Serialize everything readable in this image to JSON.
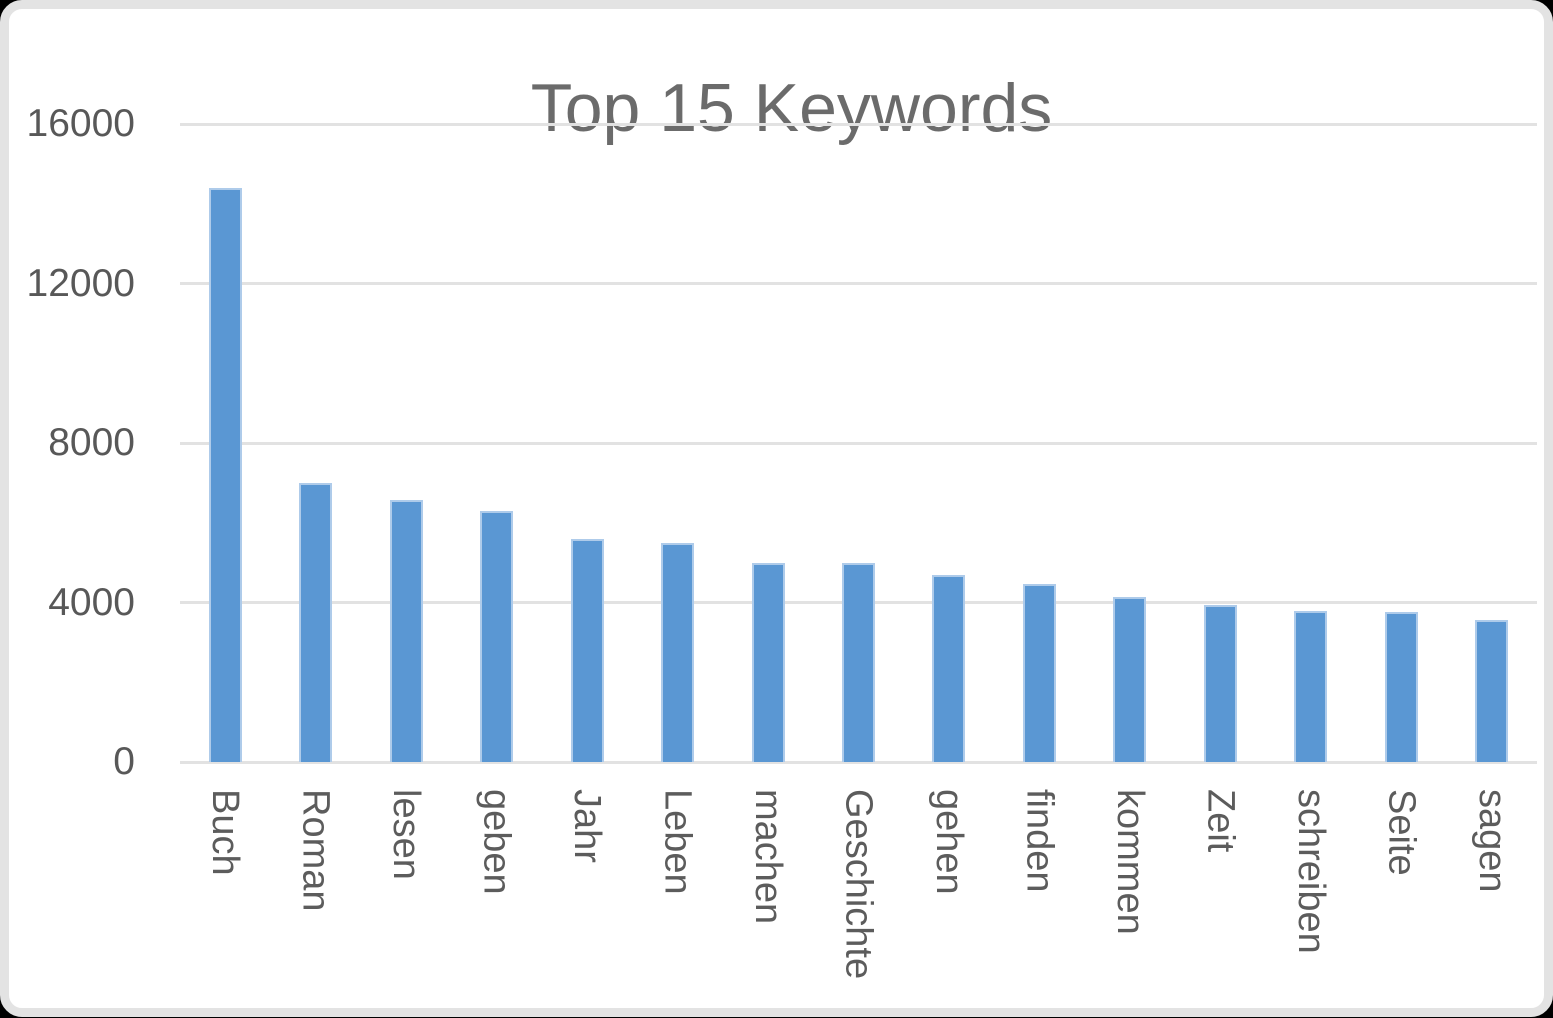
{
  "chart_data": {
    "type": "bar",
    "title": "Top 15 Keywords",
    "categories": [
      "Buch",
      "Roman",
      "lesen",
      "geben",
      "Jahr",
      "Leben",
      "machen",
      "Geschichte",
      "gehen",
      "finden",
      "kommen",
      "Zeit",
      "schreiben",
      "Seite",
      "sagen"
    ],
    "values": [
      14400,
      7000,
      6570,
      6300,
      5600,
      5490,
      4980,
      5000,
      4700,
      4460,
      4150,
      3950,
      3780,
      3750,
      3570
    ],
    "xlabel": "",
    "ylabel": "",
    "ylim": [
      0,
      16000
    ],
    "yticks": [
      0,
      4000,
      8000,
      12000,
      16000
    ],
    "grid": "horizontal gridlines on",
    "legend": "none",
    "x_label_orientation": "rotated 90deg clockwise (vertical)",
    "bar_color": "#5a97d3",
    "bar_border_color": "#aecbea"
  },
  "colors": {
    "title_text": "#6b6b6b",
    "axis_text": "#585858",
    "gridline": "#e2e2e2",
    "chart_background": "#ffffff",
    "frame_border": "#e3e3e3",
    "page_background": "#000000"
  }
}
